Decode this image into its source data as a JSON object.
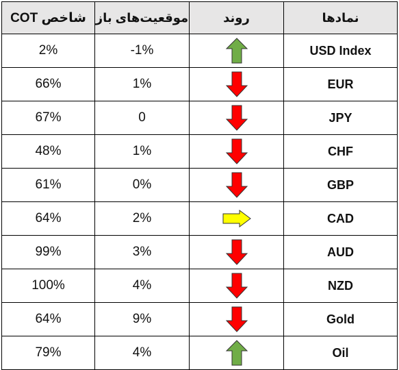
{
  "headers": {
    "cot_index": "شاخص COT",
    "open_positions": "موقعیت‌های باز",
    "trend": "روند",
    "symbols": "نمادها"
  },
  "colors": {
    "header_bg": "#e7e6e6",
    "up_arrow": "#70ad47",
    "down_arrow": "#ff0000",
    "flat_arrow": "#ffff00"
  },
  "rows": [
    {
      "symbol": "USD Index",
      "trend": "up",
      "trend_icon": "green-up-arrow-icon",
      "open_positions": "-1%",
      "cot_index": "2%"
    },
    {
      "symbol": "EUR",
      "trend": "down",
      "trend_icon": "red-down-arrow-icon",
      "open_positions": "1%",
      "cot_index": "66%"
    },
    {
      "symbol": "JPY",
      "trend": "down",
      "trend_icon": "red-down-arrow-icon",
      "open_positions": "0",
      "cot_index": "67%"
    },
    {
      "symbol": "CHF",
      "trend": "down",
      "trend_icon": "red-down-arrow-icon",
      "open_positions": "1%",
      "cot_index": "48%"
    },
    {
      "symbol": "GBP",
      "trend": "down",
      "trend_icon": "red-down-arrow-icon",
      "open_positions": "0%",
      "cot_index": "61%"
    },
    {
      "symbol": "CAD",
      "trend": "flat",
      "trend_icon": "yellow-right-arrow-icon",
      "open_positions": "2%",
      "cot_index": "64%"
    },
    {
      "symbol": "AUD",
      "trend": "down",
      "trend_icon": "red-down-arrow-icon",
      "open_positions": "3%",
      "cot_index": "99%"
    },
    {
      "symbol": "NZD",
      "trend": "down",
      "trend_icon": "red-down-arrow-icon",
      "open_positions": "4%",
      "cot_index": "100%"
    },
    {
      "symbol": "Gold",
      "trend": "down",
      "trend_icon": "red-down-arrow-icon",
      "open_positions": "9%",
      "cot_index": "64%"
    },
    {
      "symbol": "Oil",
      "trend": "up",
      "trend_icon": "green-up-arrow-icon",
      "open_positions": "4%",
      "cot_index": "79%"
    }
  ]
}
